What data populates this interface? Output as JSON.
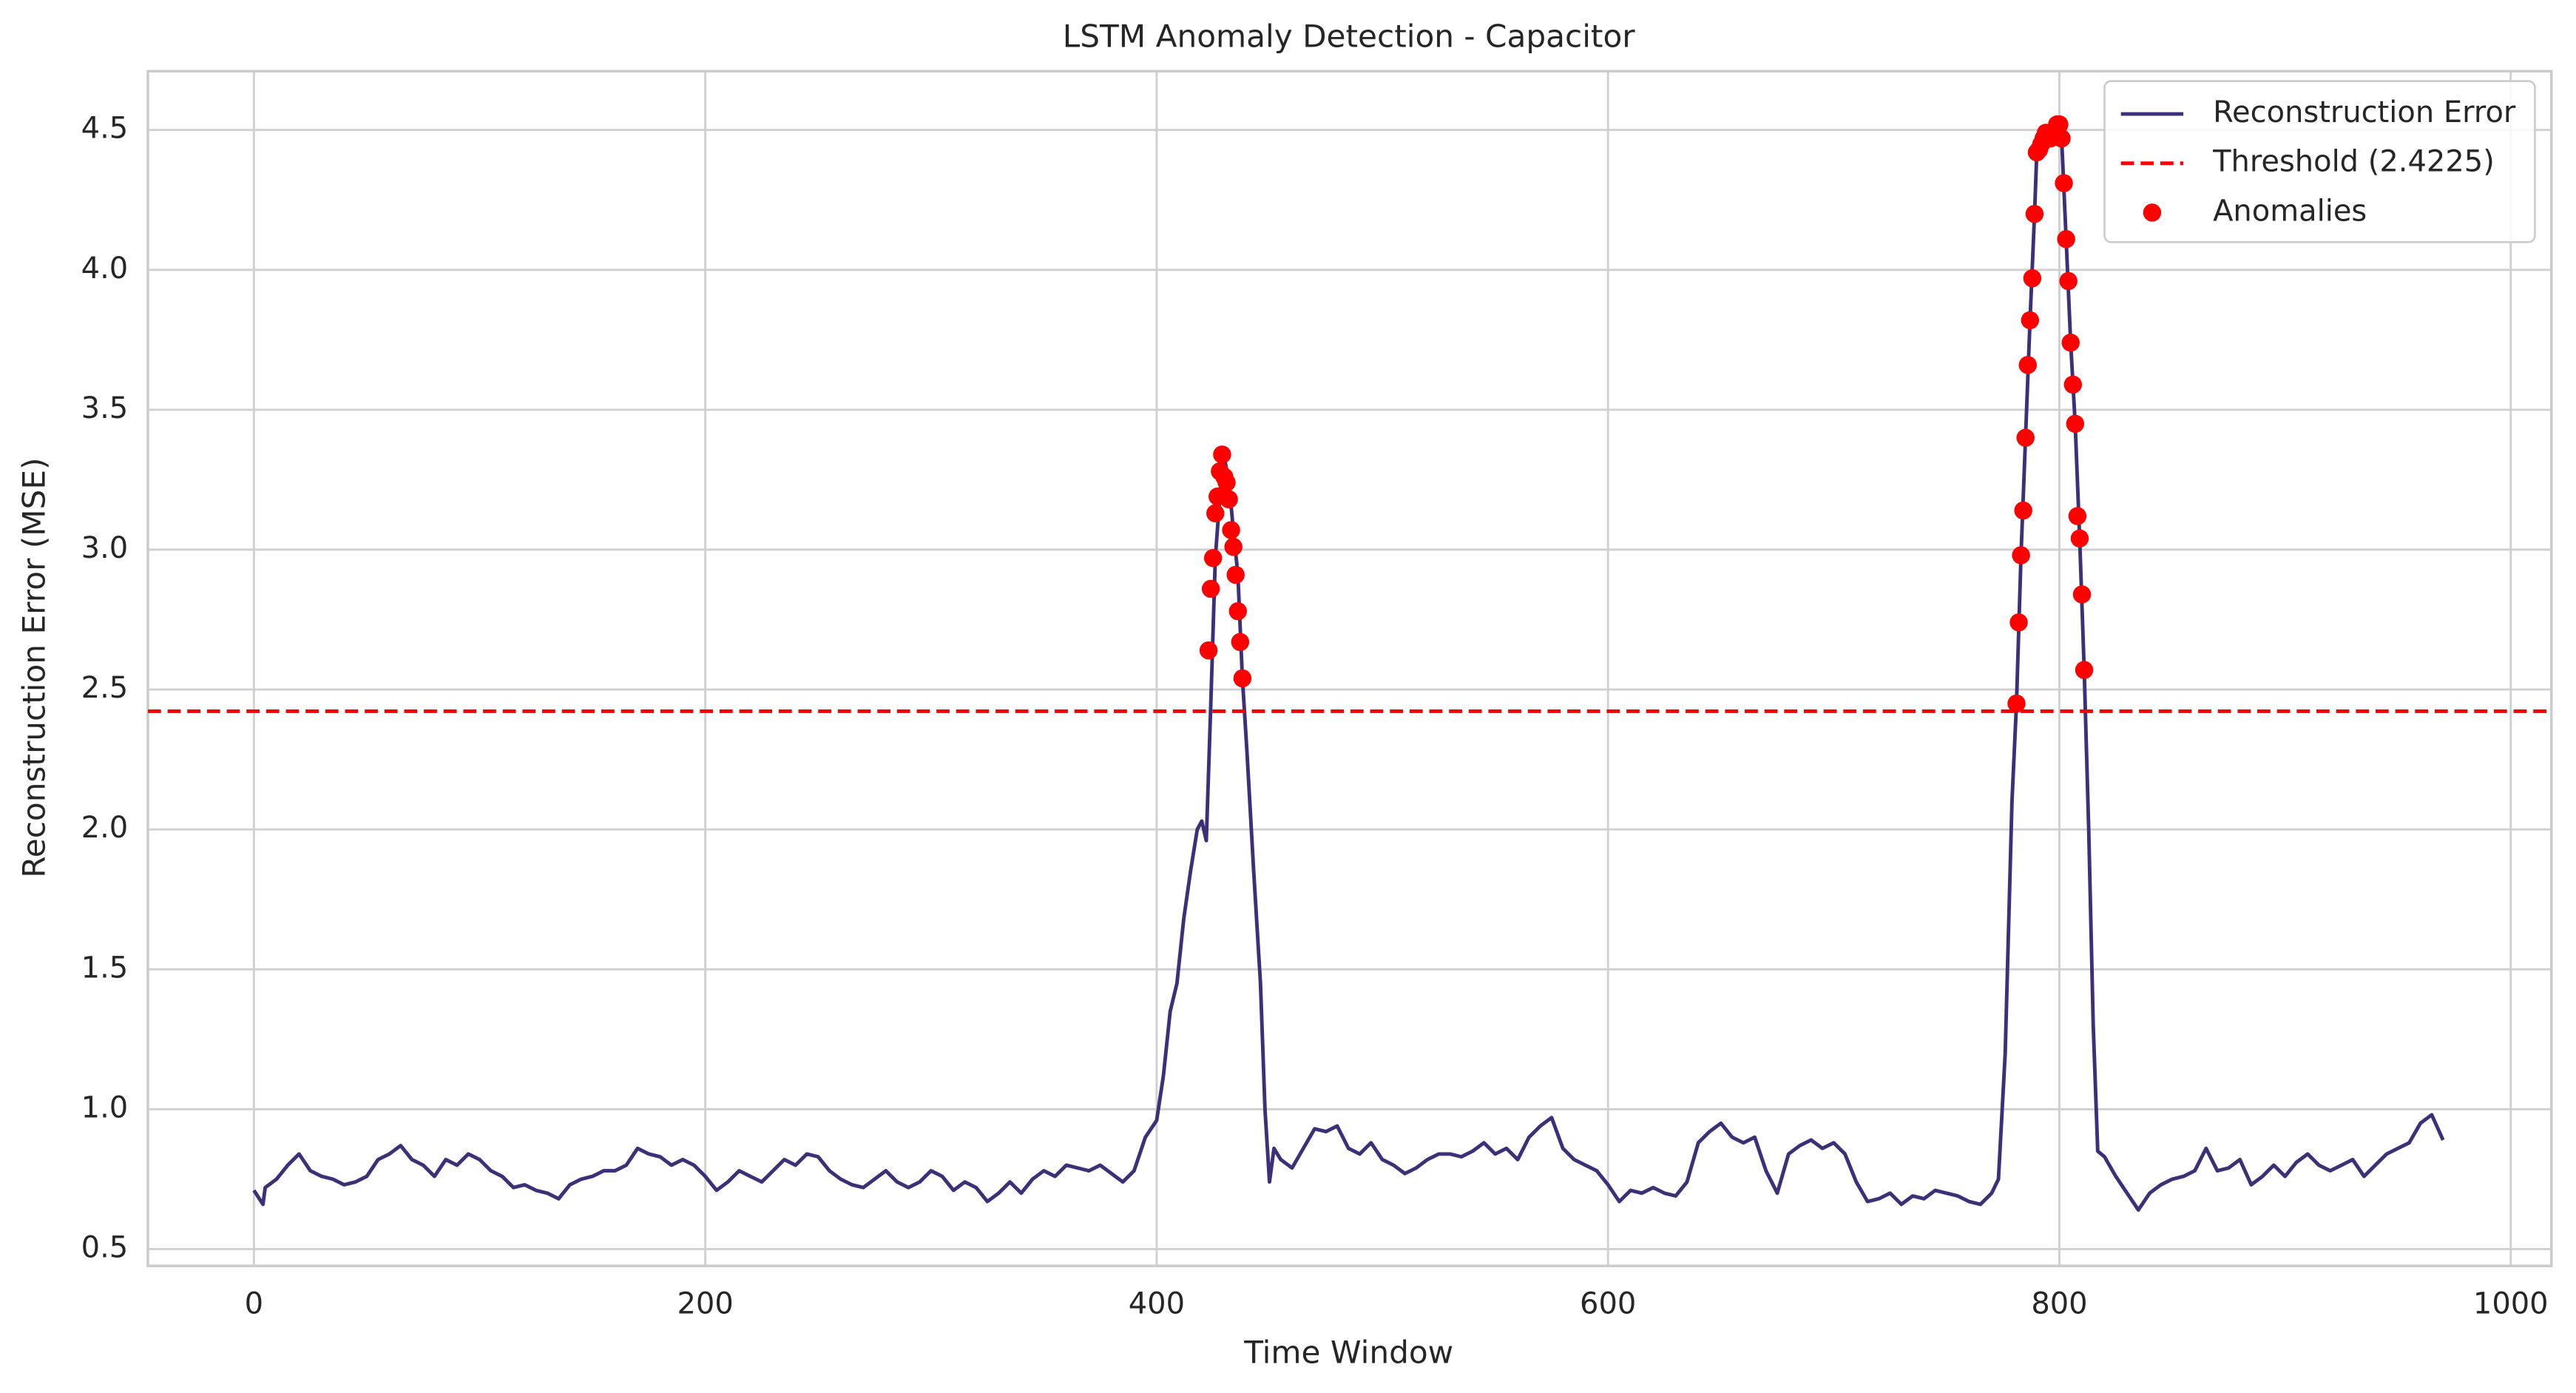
{
  "chart_data": {
    "type": "line",
    "title": "LSTM Anomaly Detection - Capacitor",
    "x_label": "Time Window",
    "y_label": "Reconstruction Error (MSE)",
    "xlim": [
      -47,
      1018
    ],
    "ylim": [
      0.44,
      4.71
    ],
    "xticks": [
      0,
      200,
      400,
      600,
      800,
      1000
    ],
    "yticks": [
      0.5,
      {
        "value": 1.0,
        "label": "1.0"
      },
      1.5,
      {
        "value": 2.0,
        "label": "2.0"
      },
      2.5,
      {
        "value": 3.0,
        "label": "3.0"
      },
      3.5,
      {
        "value": 4.0,
        "label": "4.0"
      },
      4.5
    ],
    "grid": true,
    "legend": "upper right",
    "series": [
      {
        "name": "Reconstruction Error",
        "kind": "line",
        "color": "#3d2f78",
        "x": [
          0,
          4,
          5,
          10,
          15,
          20,
          25,
          30,
          35,
          40,
          45,
          50,
          55,
          60,
          65,
          70,
          75,
          80,
          85,
          90,
          95,
          100,
          105,
          110,
          115,
          120,
          125,
          130,
          135,
          140,
          145,
          150,
          155,
          160,
          165,
          170,
          175,
          180,
          185,
          190,
          195,
          200,
          205,
          210,
          215,
          220,
          225,
          230,
          235,
          240,
          245,
          250,
          255,
          260,
          265,
          270,
          275,
          280,
          285,
          290,
          295,
          300,
          305,
          310,
          315,
          320,
          325,
          330,
          335,
          340,
          345,
          350,
          355,
          360,
          365,
          370,
          375,
          380,
          385,
          390,
          395,
          400,
          403,
          406,
          409,
          412,
          415,
          418,
          420,
          422,
          424,
          426,
          428,
          430,
          432,
          434,
          436,
          438,
          440,
          443,
          446,
          448,
          450,
          452,
          455,
          460,
          465,
          470,
          475,
          480,
          485,
          490,
          495,
          500,
          505,
          510,
          515,
          520,
          525,
          530,
          535,
          540,
          545,
          550,
          555,
          560,
          565,
          570,
          575,
          580,
          585,
          590,
          595,
          600,
          605,
          610,
          615,
          620,
          625,
          630,
          635,
          640,
          645,
          650,
          655,
          660,
          665,
          670,
          675,
          680,
          685,
          690,
          695,
          700,
          705,
          710,
          715,
          720,
          725,
          730,
          735,
          740,
          745,
          750,
          755,
          760,
          765,
          770,
          773,
          776,
          779,
          781,
          783,
          785,
          787,
          789,
          790,
          793,
          796,
          799,
          800,
          801,
          803,
          805,
          807,
          809,
          811,
          813,
          815,
          817,
          820,
          825,
          830,
          835,
          840,
          845,
          850,
          855,
          860,
          865,
          870,
          875,
          880,
          885,
          890,
          895,
          900,
          905,
          910,
          915,
          920,
          925,
          930,
          935,
          940,
          945,
          950,
          955,
          960,
          965,
          970
        ],
        "values": [
          0.71,
          0.66,
          0.72,
          0.75,
          0.8,
          0.84,
          0.78,
          0.76,
          0.75,
          0.73,
          0.74,
          0.76,
          0.82,
          0.84,
          0.87,
          0.82,
          0.8,
          0.76,
          0.82,
          0.8,
          0.84,
          0.82,
          0.78,
          0.76,
          0.72,
          0.73,
          0.71,
          0.7,
          0.68,
          0.73,
          0.75,
          0.76,
          0.78,
          0.78,
          0.8,
          0.86,
          0.84,
          0.83,
          0.8,
          0.82,
          0.8,
          0.76,
          0.71,
          0.74,
          0.78,
          0.76,
          0.74,
          0.78,
          0.82,
          0.8,
          0.84,
          0.83,
          0.78,
          0.75,
          0.73,
          0.72,
          0.75,
          0.78,
          0.74,
          0.72,
          0.74,
          0.78,
          0.76,
          0.71,
          0.74,
          0.72,
          0.67,
          0.7,
          0.74,
          0.7,
          0.75,
          0.78,
          0.76,
          0.8,
          0.79,
          0.78,
          0.8,
          0.77,
          0.74,
          0.78,
          0.9,
          0.96,
          1.12,
          1.35,
          1.45,
          1.68,
          1.85,
          2.0,
          2.03,
          1.96,
          2.45,
          2.97,
          3.19,
          3.33,
          3.24,
          3.07,
          2.91,
          2.54,
          2.28,
          1.85,
          1.45,
          1.0,
          0.74,
          0.86,
          0.82,
          0.79,
          0.86,
          0.93,
          0.92,
          0.94,
          0.86,
          0.84,
          0.88,
          0.82,
          0.8,
          0.77,
          0.79,
          0.82,
          0.84,
          0.84,
          0.83,
          0.85,
          0.88,
          0.84,
          0.86,
          0.82,
          0.9,
          0.94,
          0.97,
          0.86,
          0.82,
          0.8,
          0.78,
          0.73,
          0.67,
          0.71,
          0.7,
          0.72,
          0.7,
          0.69,
          0.74,
          0.88,
          0.92,
          0.95,
          0.9,
          0.88,
          0.9,
          0.78,
          0.7,
          0.84,
          0.87,
          0.89,
          0.86,
          0.88,
          0.84,
          0.74,
          0.67,
          0.68,
          0.7,
          0.66,
          0.69,
          0.68,
          0.71,
          0.7,
          0.69,
          0.67,
          0.66,
          0.7,
          0.75,
          1.2,
          2.1,
          2.45,
          2.98,
          3.4,
          3.82,
          4.2,
          4.42,
          4.47,
          4.48,
          4.52,
          4.52,
          4.47,
          4.11,
          3.74,
          3.45,
          3.04,
          2.57,
          2.0,
          1.3,
          0.85,
          0.83,
          0.76,
          0.7,
          0.64,
          0.7,
          0.73,
          0.75,
          0.76,
          0.78,
          0.86,
          0.78,
          0.79,
          0.82,
          0.73,
          0.76,
          0.8,
          0.76,
          0.81,
          0.84,
          0.8,
          0.78,
          0.8,
          0.82,
          0.76,
          0.8,
          0.84,
          0.86,
          0.88,
          0.95,
          0.98,
          0.89
        ]
      },
      {
        "name": "Threshold (2.4225)",
        "kind": "hline",
        "color": "#ff0000",
        "value": 2.4225
      },
      {
        "name": "Anomalies",
        "kind": "scatter",
        "color": "#ff0000",
        "x": [
          423,
          424,
          425,
          426,
          427,
          428,
          429,
          430,
          431,
          432,
          433,
          434,
          435,
          436,
          437,
          438,
          781,
          782,
          783,
          784,
          785,
          786,
          787,
          788,
          789,
          790,
          791,
          792,
          793,
          794,
          795,
          796,
          797,
          798,
          799,
          800,
          801,
          802,
          803,
          804,
          805,
          806,
          807,
          808,
          809,
          810,
          811
        ],
        "values": [
          2.64,
          2.86,
          2.97,
          3.13,
          3.19,
          3.28,
          3.34,
          3.26,
          3.24,
          3.18,
          3.07,
          3.01,
          2.91,
          2.78,
          2.67,
          2.54,
          2.45,
          2.74,
          2.98,
          3.14,
          3.4,
          3.66,
          3.82,
          3.97,
          4.2,
          4.42,
          4.43,
          4.45,
          4.47,
          4.49,
          4.48,
          4.47,
          4.48,
          4.5,
          4.52,
          4.52,
          4.47,
          4.31,
          4.11,
          3.96,
          3.74,
          3.59,
          3.45,
          3.12,
          3.04,
          2.84,
          2.57
        ]
      }
    ]
  }
}
